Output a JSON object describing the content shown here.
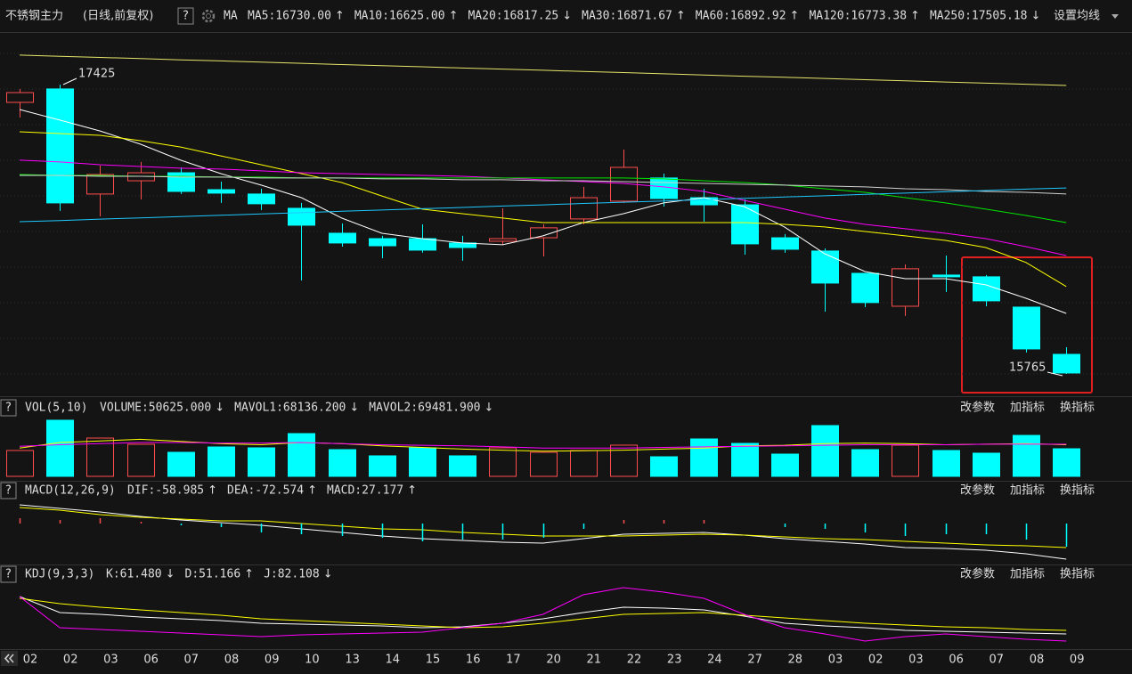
{
  "header": {
    "help": "?",
    "panel_buttons": [
      "改参数",
      "加指标",
      "换指标"
    ]
  },
  "chart_data": [
    {
      "type": "candlestick",
      "title": "不锈钢主力",
      "subtitle": "(日线,前复权)",
      "indicator": "MA",
      "settings_label": "设置均线",
      "categories": [
        "02",
        "02",
        "03",
        "06",
        "07",
        "08",
        "09",
        "10",
        "13",
        "14",
        "15",
        "16",
        "17",
        "20",
        "21",
        "22",
        "23",
        "24",
        "27",
        "28",
        "03",
        "02",
        "03",
        "06",
        "07",
        "08",
        "09"
      ],
      "open": [
        17323,
        17400,
        16797,
        16873,
        16919,
        16822,
        16797,
        16715,
        16572,
        16541,
        16541,
        16516,
        16526,
        16546,
        16654,
        16756,
        16889,
        16776,
        16735,
        16546,
        16470,
        16342,
        16153,
        16332,
        16322,
        16148,
        15877
      ],
      "high": [
        17400,
        17425,
        16960,
        16981,
        16950,
        16868,
        16827,
        16746,
        16628,
        16557,
        16623,
        16557,
        16715,
        16623,
        16838,
        17052,
        16914,
        16827,
        16766,
        16567,
        16485,
        16342,
        16393,
        16444,
        16332,
        16148,
        15918
      ],
      "low": [
        17236,
        16700,
        16669,
        16766,
        16797,
        16746,
        16705,
        16301,
        16495,
        16429,
        16460,
        16414,
        16506,
        16439,
        16623,
        16746,
        16725,
        16638,
        16449,
        16460,
        16122,
        16148,
        16097,
        16235,
        16153,
        15888,
        15765
      ],
      "close": [
        17379,
        16746,
        16909,
        16919,
        16812,
        16802,
        16741,
        16618,
        16516,
        16500,
        16475,
        16490,
        16541,
        16603,
        16776,
        16950,
        16771,
        16735,
        16511,
        16480,
        16286,
        16174,
        16368,
        16322,
        16184,
        15908,
        15770
      ],
      "up_color": "#ff4d4d",
      "down_color": "#00ffff",
      "ylim": [
        15647,
        17706
      ],
      "series": [
        {
          "name": "MA5:16730.00",
          "arrow": "↑",
          "color": "#ffffff",
          "values": [
            17282,
            17221,
            17159,
            17083,
            16991,
            16914,
            16848,
            16776,
            16659,
            16572,
            16541,
            16516,
            16506,
            16557,
            16633,
            16684,
            16746,
            16776,
            16725,
            16608,
            16454,
            16352,
            16311,
            16311,
            16276,
            16199,
            16112
          ]
        },
        {
          "name": "MA10:16625.00",
          "arrow": "↑",
          "color": "#ffff00",
          "values": [
            17154,
            17144,
            17134,
            17103,
            17067,
            17016,
            16965,
            16914,
            16863,
            16786,
            16710,
            16684,
            16659,
            16633,
            16633,
            16633,
            16633,
            16633,
            16633,
            16623,
            16608,
            16582,
            16557,
            16531,
            16490,
            16404,
            16266
          ]
        },
        {
          "name": "MA20:16817.25",
          "arrow": "↓",
          "color": "#ff00ff",
          "values": [
            16991,
            16981,
            16965,
            16955,
            16945,
            16940,
            16930,
            16919,
            16914,
            16909,
            16904,
            16899,
            16889,
            16879,
            16868,
            16858,
            16838,
            16812,
            16761,
            16710,
            16659,
            16623,
            16598,
            16572,
            16541,
            16495,
            16444
          ]
        },
        {
          "name": "MA30:16871.67",
          "arrow": "↑",
          "color": "#00e600",
          "values": [
            16909,
            16904,
            16904,
            16899,
            16899,
            16894,
            16894,
            16889,
            16889,
            16889,
            16889,
            16889,
            16889,
            16889,
            16889,
            16889,
            16884,
            16873,
            16863,
            16848,
            16827,
            16807,
            16776,
            16746,
            16710,
            16674,
            16633
          ]
        },
        {
          "name": "MA60:16892.92",
          "arrow": "↑",
          "color": "#d0d0d0",
          "values": [
            16904,
            16904,
            16899,
            16899,
            16894,
            16894,
            16889,
            16889,
            16889,
            16884,
            16884,
            16879,
            16879,
            16873,
            16873,
            16868,
            16863,
            16858,
            16853,
            16848,
            16843,
            16838,
            16827,
            16822,
            16812,
            16807,
            16797
          ]
        },
        {
          "name": "MA120:16773.38",
          "arrow": "↑",
          "color": "#1ec8ff",
          "values": [
            16638,
            16645,
            16653,
            16660,
            16668,
            16675,
            16683,
            16690,
            16698,
            16705,
            16713,
            16720,
            16728,
            16735,
            16743,
            16750,
            16757,
            16765,
            16772,
            16780,
            16787,
            16795,
            16802,
            16810,
            16817,
            16825,
            16832
          ]
        },
        {
          "name": "MA250:17505.18",
          "arrow": "↓",
          "color": "#e6e66a",
          "values": [
            17594,
            17587,
            17581,
            17574,
            17567,
            17561,
            17554,
            17547,
            17540,
            17534,
            17527,
            17520,
            17514,
            17507,
            17500,
            17494,
            17487,
            17480,
            17473,
            17467,
            17460,
            17453,
            17447,
            17440,
            17433,
            17427,
            17420
          ]
        }
      ]
    },
    {
      "type": "volume",
      "title": "VOL(5,10)",
      "ylim": [
        0,
        109400
      ],
      "series": [
        {
          "type": "bar",
          "name": "VOLUME:50625.000",
          "arrow": "↓",
          "color": "#ffffff",
          "values": [
            47400,
            102900,
            70200,
            58800,
            44100,
            53900,
            52300,
            78400,
            49000,
            37600,
            52300,
            37600,
            52300,
            44100,
            47400,
            57200,
            35900,
            68600,
            60400,
            40800,
            93100,
            49000,
            57200,
            47400,
            42500,
            75100,
            50600
          ]
        },
        {
          "type": "line",
          "name": "MAVOL1:68136.200",
          "arrow": "↓",
          "color": "#ffff00",
          "values": [
            52000,
            62000,
            65000,
            68000,
            64000,
            60000,
            58000,
            62000,
            60000,
            56000,
            53000,
            50000,
            48000,
            46000,
            47000,
            48000,
            50000,
            52000,
            56000,
            57000,
            60000,
            61000,
            60000,
            58000,
            59000,
            60000,
            58000
          ]
        },
        {
          "type": "line",
          "name": "MAVOL2:69481.900",
          "arrow": "↓",
          "color": "#ff00ff",
          "values": [
            55000,
            58000,
            60000,
            62000,
            62000,
            61000,
            61000,
            62000,
            60000,
            58000,
            57000,
            56000,
            54000,
            52000,
            52000,
            52000,
            53000,
            54000,
            55000,
            56000,
            57000,
            58000,
            58000,
            58000,
            59000,
            59000,
            59000
          ]
        }
      ]
    },
    {
      "type": "macd",
      "title": "MACD(12,26,9)",
      "ylim": [
        -66,
        39
      ],
      "series": [
        {
          "type": "line",
          "name": "DIF:-58.985",
          "arrow": "↑",
          "color": "#ffffff",
          "values": [
            31.5,
            25.5,
            19.5,
            12,
            6,
            1.5,
            -3,
            -9,
            -15,
            -21,
            -25.5,
            -28.5,
            -31.5,
            -33,
            -25.5,
            -18,
            -16.5,
            -15,
            -19.5,
            -25.5,
            -30,
            -34.5,
            -40.5,
            -42,
            -45,
            -51,
            -60
          ]
        },
        {
          "type": "line",
          "name": "DEA:-72.574",
          "arrow": "↑",
          "color": "#ffff00",
          "values": [
            27,
            22.5,
            15,
            10.5,
            7.5,
            4.5,
            4.5,
            0,
            -4.5,
            -9,
            -10.5,
            -15,
            -18,
            -21,
            -21,
            -21,
            -19.5,
            -18,
            -19.5,
            -22.5,
            -25.5,
            -27,
            -30,
            -33,
            -36,
            -37.5,
            -40.5
          ]
        },
        {
          "type": "bar",
          "name": "MACD:27.177",
          "arrow": "↑",
          "color": "#ff00ff",
          "values": [
            9,
            6,
            9,
            3,
            -3,
            -6,
            -15,
            -18,
            -21,
            -24,
            -30,
            -27,
            -27,
            -24,
            -9,
            6,
            6,
            6,
            0,
            -6,
            -9,
            -15,
            -21,
            -18,
            -18,
            -27,
            -39
          ]
        }
      ]
    },
    {
      "type": "kdj",
      "title": "KDJ(9,3,3)",
      "ylim": [
        -5,
        113.3
      ],
      "series": [
        {
          "type": "line",
          "name": "K:61.480",
          "arrow": "↓",
          "color": "#ffffff",
          "values": [
            91.7,
            61.7,
            58.3,
            53.3,
            50,
            46.7,
            41.7,
            40,
            38.3,
            36.7,
            33.3,
            35,
            41.7,
            50,
            61.7,
            71.7,
            70,
            66.7,
            55,
            41.7,
            36.7,
            33.3,
            28.3,
            26.7,
            25,
            23.3,
            21.7
          ]
        },
        {
          "type": "line",
          "name": "D:51.166",
          "arrow": "↑",
          "color": "#ffff00",
          "values": [
            88.3,
            78.3,
            71.7,
            66.7,
            61.7,
            56.7,
            50,
            46.7,
            43.3,
            40,
            36.7,
            33.3,
            35,
            41.7,
            50,
            58.3,
            60,
            61.7,
            56.7,
            51.7,
            46.7,
            41.7,
            38.3,
            35,
            33.3,
            30,
            28.3
          ]
        },
        {
          "type": "line",
          "name": "J:82.108",
          "arrow": "↓",
          "color": "#ff00ff",
          "values": [
            91.7,
            33.3,
            30,
            26.7,
            23.3,
            20,
            16.7,
            20,
            21.7,
            23.3,
            25,
            33.3,
            41.7,
            58.3,
            95,
            108.3,
            100,
            88.3,
            58.3,
            33.3,
            21.7,
            8.3,
            16.7,
            21.7,
            16.7,
            11.7,
            8.3
          ]
        }
      ]
    }
  ]
}
